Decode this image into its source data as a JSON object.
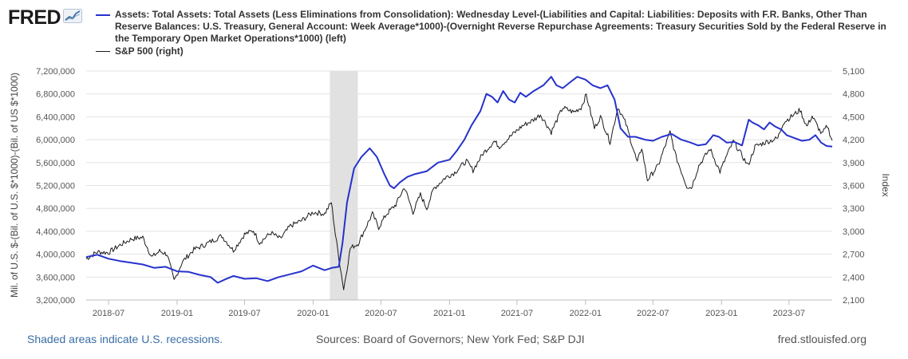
{
  "brand": {
    "logo": "FRED",
    "logo_icon": "trend-line-icon"
  },
  "legend": [
    {
      "label": "Assets: Total Assets: Total Assets (Less Eliminations from Consolidation): Wednesday Level-(Liabilities and Capital: Liabilities: Deposits with F.R. Banks, Other Than Reserve Balances: U.S. Treasury, General Account: Week Average*1000)-(Overnight Reverse Repurchase Agreements: Treasury Securities Sold by the Federal Reserve in the Temporary Open Market Operations*1000) (left)",
      "color": "#2632cc"
    },
    {
      "label": "S&P 500 (right)",
      "color": "#1a1a1a"
    }
  ],
  "footer": {
    "recession_note": "Shaded areas indicate U.S. recessions.",
    "sources": "Sources: Board of Governors; New York Fed; S&P DJI",
    "site": "fred.stlouisfed.org"
  },
  "chart_data": {
    "type": "line",
    "ylabel_left": "Mil. of U.S. $-(Bil. of U.S. $*1000)-(Bil. of US $*1000)",
    "ylabel_right": "Index",
    "x_range": [
      "2018-05-02",
      "2023-10-25"
    ],
    "x_ticks": [
      "2018-07",
      "2019-01",
      "2019-07",
      "2020-01",
      "2020-07",
      "2021-01",
      "2021-07",
      "2022-01",
      "2022-07",
      "2023-01",
      "2023-07"
    ],
    "y_left_range": [
      3200000,
      7200000
    ],
    "y_left_ticks": [
      "3,200,000",
      "3,600,000",
      "4,000,000",
      "4,400,000",
      "4,800,000",
      "5,200,000",
      "5,600,000",
      "6,000,000",
      "6,400,000",
      "6,800,000",
      "7,200,000"
    ],
    "y_right_range": [
      2100,
      5100
    ],
    "y_right_ticks": [
      "2,100",
      "2,400",
      "2,700",
      "3,000",
      "3,300",
      "3,600",
      "3,900",
      "4,200",
      "4,500",
      "4,800",
      "5,100"
    ],
    "grid": true,
    "recessions": [
      {
        "start": "2020-02-15",
        "end": "2020-04-30"
      }
    ],
    "series": [
      {
        "name": "Assets: Total Assets: Total Assets (Less Eliminations from Consolidation): Wednesday Level-(Liabilities and Capital: Liabilities: Deposits with F.R. Banks, Other Than Reserve Balances: U.S. Treasury, General Account: Week Average*1000)-(Overnight Reverse Repurchase Agreements: Treasury Securities Sold by the Federal Reserve in the Temporary Open Market Operations*1000) (left)",
        "axis": "left",
        "color": "#2632cc",
        "points": [
          [
            "2018-05-02",
            3950000
          ],
          [
            "2018-06-01",
            3990000
          ],
          [
            "2018-07-01",
            3920000
          ],
          [
            "2018-08-01",
            3880000
          ],
          [
            "2018-09-01",
            3850000
          ],
          [
            "2018-10-01",
            3820000
          ],
          [
            "2018-11-01",
            3760000
          ],
          [
            "2018-12-01",
            3780000
          ],
          [
            "2019-01-01",
            3700000
          ],
          [
            "2019-02-01",
            3690000
          ],
          [
            "2019-03-01",
            3640000
          ],
          [
            "2019-04-01",
            3600000
          ],
          [
            "2019-04-20",
            3500000
          ],
          [
            "2019-05-10",
            3560000
          ],
          [
            "2019-06-01",
            3620000
          ],
          [
            "2019-07-01",
            3570000
          ],
          [
            "2019-08-01",
            3580000
          ],
          [
            "2019-09-01",
            3530000
          ],
          [
            "2019-10-01",
            3600000
          ],
          [
            "2019-11-01",
            3650000
          ],
          [
            "2019-12-01",
            3700000
          ],
          [
            "2020-01-01",
            3800000
          ],
          [
            "2020-02-01",
            3720000
          ],
          [
            "2020-02-20",
            3760000
          ],
          [
            "2020-03-10",
            3780000
          ],
          [
            "2020-03-20",
            4200000
          ],
          [
            "2020-04-01",
            4900000
          ],
          [
            "2020-04-20",
            5500000
          ],
          [
            "2020-05-10",
            5700000
          ],
          [
            "2020-06-01",
            5850000
          ],
          [
            "2020-06-20",
            5700000
          ],
          [
            "2020-07-10",
            5400000
          ],
          [
            "2020-07-25",
            5200000
          ],
          [
            "2020-08-05",
            5150000
          ],
          [
            "2020-08-20",
            5250000
          ],
          [
            "2020-09-10",
            5350000
          ],
          [
            "2020-10-01",
            5400000
          ],
          [
            "2020-11-01",
            5450000
          ],
          [
            "2020-12-01",
            5600000
          ],
          [
            "2021-01-01",
            5650000
          ],
          [
            "2021-01-20",
            5800000
          ],
          [
            "2021-02-10",
            6000000
          ],
          [
            "2021-03-01",
            6250000
          ],
          [
            "2021-03-25",
            6500000
          ],
          [
            "2021-04-10",
            6800000
          ],
          [
            "2021-04-25",
            6750000
          ],
          [
            "2021-05-10",
            6650000
          ],
          [
            "2021-05-25",
            6850000
          ],
          [
            "2021-06-10",
            6700000
          ],
          [
            "2021-06-25",
            6650000
          ],
          [
            "2021-07-10",
            6820000
          ],
          [
            "2021-07-25",
            6750000
          ],
          [
            "2021-08-15",
            6850000
          ],
          [
            "2021-09-10",
            6950000
          ],
          [
            "2021-10-01",
            7100000
          ],
          [
            "2021-10-15",
            6950000
          ],
          [
            "2021-11-01",
            6900000
          ],
          [
            "2021-11-20",
            7000000
          ],
          [
            "2021-12-10",
            7100000
          ],
          [
            "2022-01-01",
            7050000
          ],
          [
            "2022-01-20",
            6950000
          ],
          [
            "2022-02-10",
            6900000
          ],
          [
            "2022-03-01",
            6950000
          ],
          [
            "2022-03-20",
            6700000
          ],
          [
            "2022-04-05",
            6200000
          ],
          [
            "2022-04-25",
            6050000
          ],
          [
            "2022-05-15",
            6050000
          ],
          [
            "2022-06-10",
            6000000
          ],
          [
            "2022-07-01",
            5980000
          ],
          [
            "2022-07-25",
            6050000
          ],
          [
            "2022-08-20",
            6100000
          ],
          [
            "2022-09-15",
            6000000
          ],
          [
            "2022-10-10",
            5950000
          ],
          [
            "2022-10-30",
            5900000
          ],
          [
            "2022-11-20",
            5920000
          ],
          [
            "2022-12-10",
            6080000
          ],
          [
            "2022-12-25",
            6050000
          ],
          [
            "2023-01-15",
            5950000
          ],
          [
            "2023-02-05",
            5960000
          ],
          [
            "2023-02-25",
            5900000
          ],
          [
            "2023-03-15",
            6350000
          ],
          [
            "2023-03-25",
            6300000
          ],
          [
            "2023-04-10",
            6250000
          ],
          [
            "2023-04-25",
            6180000
          ],
          [
            "2023-05-10",
            6300000
          ],
          [
            "2023-05-25",
            6230000
          ],
          [
            "2023-06-10",
            6180000
          ],
          [
            "2023-06-25",
            6080000
          ],
          [
            "2023-07-15",
            6030000
          ],
          [
            "2023-08-05",
            5980000
          ],
          [
            "2023-08-25",
            6000000
          ],
          [
            "2023-09-10",
            6080000
          ],
          [
            "2023-09-25",
            5950000
          ],
          [
            "2023-10-10",
            5890000
          ],
          [
            "2023-10-25",
            5880000
          ]
        ]
      },
      {
        "name": "S&P 500 (right)",
        "axis": "right",
        "color": "#1a1a1a",
        "points": [
          [
            "2018-05-02",
            2640
          ],
          [
            "2018-06-01",
            2730
          ],
          [
            "2018-07-01",
            2720
          ],
          [
            "2018-08-01",
            2820
          ],
          [
            "2018-09-01",
            2900
          ],
          [
            "2018-10-01",
            2920
          ],
          [
            "2018-10-25",
            2660
          ],
          [
            "2018-11-15",
            2740
          ],
          [
            "2018-12-05",
            2700
          ],
          [
            "2018-12-24",
            2350
          ],
          [
            "2019-01-15",
            2600
          ],
          [
            "2019-02-15",
            2760
          ],
          [
            "2019-03-15",
            2820
          ],
          [
            "2019-04-15",
            2900
          ],
          [
            "2019-05-01",
            2940
          ],
          [
            "2019-06-01",
            2750
          ],
          [
            "2019-07-01",
            2960
          ],
          [
            "2019-07-25",
            3010
          ],
          [
            "2019-08-10",
            2850
          ],
          [
            "2019-09-10",
            2980
          ],
          [
            "2019-10-05",
            2900
          ],
          [
            "2019-11-01",
            3070
          ],
          [
            "2019-12-01",
            3140
          ],
          [
            "2020-01-01",
            3250
          ],
          [
            "2020-02-01",
            3230
          ],
          [
            "2020-02-19",
            3380
          ],
          [
            "2020-03-01",
            2950
          ],
          [
            "2020-03-23",
            2240
          ],
          [
            "2020-04-10",
            2780
          ],
          [
            "2020-05-01",
            2840
          ],
          [
            "2020-06-08",
            3230
          ],
          [
            "2020-06-25",
            3050
          ],
          [
            "2020-07-15",
            3220
          ],
          [
            "2020-08-10",
            3350
          ],
          [
            "2020-09-02",
            3580
          ],
          [
            "2020-09-25",
            3250
          ],
          [
            "2020-10-15",
            3480
          ],
          [
            "2020-11-01",
            3300
          ],
          [
            "2020-11-20",
            3560
          ],
          [
            "2020-12-20",
            3700
          ],
          [
            "2021-01-15",
            3770
          ],
          [
            "2021-02-15",
            3920
          ],
          [
            "2021-03-05",
            3800
          ],
          [
            "2021-04-01",
            4020
          ],
          [
            "2021-05-01",
            4180
          ],
          [
            "2021-05-15",
            4110
          ],
          [
            "2021-06-15",
            4250
          ],
          [
            "2021-07-15",
            4380
          ],
          [
            "2021-08-15",
            4460
          ],
          [
            "2021-09-02",
            4530
          ],
          [
            "2021-10-01",
            4300
          ],
          [
            "2021-11-01",
            4620
          ],
          [
            "2021-11-30",
            4560
          ],
          [
            "2021-12-20",
            4620
          ],
          [
            "2022-01-03",
            4790
          ],
          [
            "2022-01-25",
            4350
          ],
          [
            "2022-02-10",
            4500
          ],
          [
            "2022-03-08",
            4170
          ],
          [
            "2022-03-29",
            4630
          ],
          [
            "2022-04-20",
            4400
          ],
          [
            "2022-05-20",
            3900
          ],
          [
            "2022-06-01",
            4100
          ],
          [
            "2022-06-16",
            3670
          ],
          [
            "2022-07-15",
            3860
          ],
          [
            "2022-08-16",
            4300
          ],
          [
            "2022-09-01",
            3970
          ],
          [
            "2022-09-30",
            3590
          ],
          [
            "2022-10-12",
            3570
          ],
          [
            "2022-11-01",
            3860
          ],
          [
            "2022-12-01",
            4080
          ],
          [
            "2022-12-28",
            3780
          ],
          [
            "2023-01-15",
            3990
          ],
          [
            "2023-02-02",
            4180
          ],
          [
            "2023-03-13",
            3860
          ],
          [
            "2023-04-01",
            4110
          ],
          [
            "2023-05-01",
            4170
          ],
          [
            "2023-06-01",
            4220
          ],
          [
            "2023-06-15",
            4420
          ],
          [
            "2023-07-31",
            4590
          ],
          [
            "2023-08-18",
            4370
          ],
          [
            "2023-09-01",
            4510
          ],
          [
            "2023-09-27",
            4270
          ],
          [
            "2023-10-12",
            4380
          ],
          [
            "2023-10-25",
            4190
          ]
        ]
      }
    ]
  }
}
